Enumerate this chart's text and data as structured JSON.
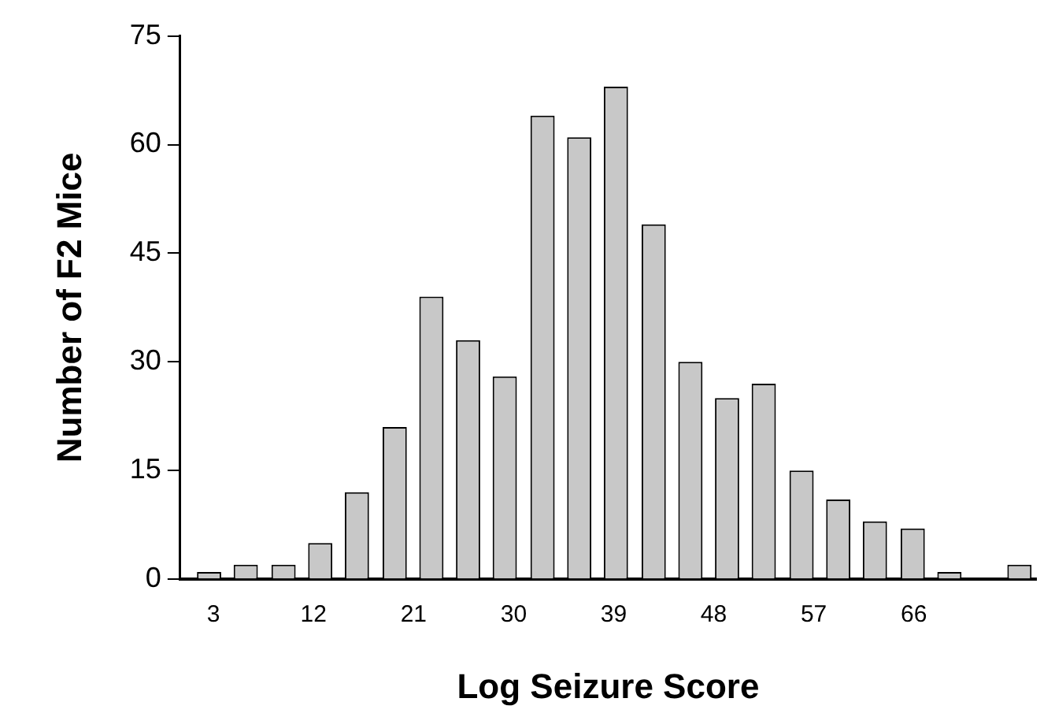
{
  "chart_data": {
    "type": "bar",
    "xlabel": "Log Seizure Score",
    "ylabel": "Number of F2 Mice",
    "x": [
      2.6,
      5.9,
      9.3,
      12.6,
      15.9,
      19.3,
      22.6,
      25.9,
      29.2,
      32.6,
      35.9,
      39.2,
      42.6,
      45.9,
      49.2,
      52.5,
      55.9,
      59.2,
      62.5,
      65.9,
      69.2,
      75.5
    ],
    "values": [
      1,
      2,
      2,
      5,
      12,
      21,
      39,
      33,
      28,
      64,
      61,
      68,
      49,
      30,
      25,
      27,
      15,
      11,
      8,
      7,
      1,
      2
    ],
    "color": "#c8c8c8",
    "xlim": [
      0,
      77
    ],
    "xticks": [
      3,
      12,
      21,
      30,
      39,
      48,
      57,
      66
    ],
    "ylim": [
      0,
      75
    ],
    "yticks": [
      0,
      15,
      30,
      45,
      60,
      75
    ],
    "grid": false,
    "legend": false
  }
}
